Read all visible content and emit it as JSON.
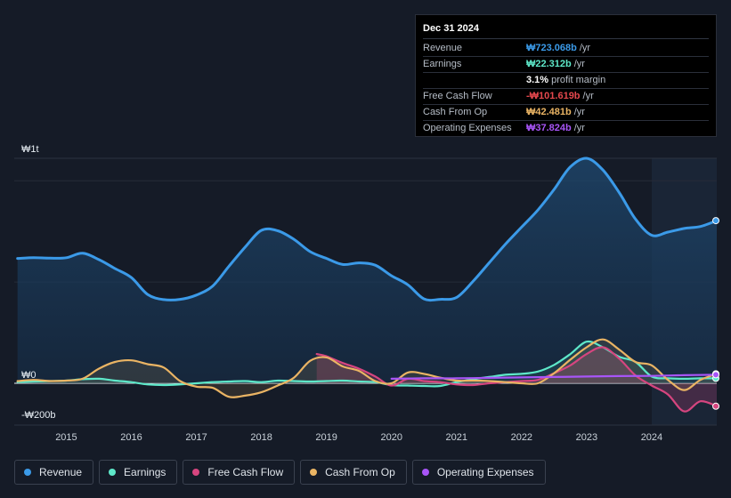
{
  "tooltip": {
    "date": "Dec 31 2024",
    "rows": [
      {
        "label": "Revenue",
        "value": "₩723.068b",
        "unit": "/yr",
        "color": "#3b9ae8"
      },
      {
        "label": "Earnings",
        "value": "₩22.312b",
        "unit": "/yr",
        "color": "#5ee8c9"
      },
      {
        "label": "",
        "value": "3.1%",
        "unit": "profit margin",
        "color": "#ffffff"
      },
      {
        "label": "Free Cash Flow",
        "value": "-₩101.619b",
        "unit": "/yr",
        "color": "#e5484d"
      },
      {
        "label": "Cash From Op",
        "value": "₩42.481b",
        "unit": "/yr",
        "color": "#eab464"
      },
      {
        "label": "Operating Expenses",
        "value": "₩37.824b",
        "unit": "/yr",
        "color": "#a855f7"
      }
    ]
  },
  "legend": [
    {
      "label": "Revenue",
      "color": "#3b9ae8"
    },
    {
      "label": "Earnings",
      "color": "#5ee8c9"
    },
    {
      "label": "Free Cash Flow",
      "color": "#d6457f"
    },
    {
      "label": "Cash From Op",
      "color": "#eab464"
    },
    {
      "label": "Operating Expenses",
      "color": "#a855f7"
    }
  ],
  "chart_data": {
    "type": "line",
    "title": "",
    "y_top_label": "₩1t",
    "y_zero_label": "₩0",
    "y_bottom_label": "-₩200b",
    "ylim": [
      -200,
      1000
    ],
    "xlim": [
      2014.2,
      2025.0
    ],
    "forecast_start": 2024.0,
    "x_ticks": [
      2015,
      2016,
      2017,
      2018,
      2019,
      2020,
      2021,
      2022,
      2023,
      2024
    ],
    "x_tick_labels": [
      "2015",
      "2016",
      "2017",
      "2018",
      "2019",
      "2020",
      "2021",
      "2022",
      "2023",
      "2024"
    ],
    "series": [
      {
        "name": "Revenue",
        "color": "#3b9ae8",
        "x": [
          2014.25,
          2014.5,
          2014.75,
          2015.0,
          2015.25,
          2015.5,
          2015.75,
          2016.0,
          2016.25,
          2016.5,
          2016.75,
          2017.0,
          2017.25,
          2017.5,
          2017.75,
          2018.0,
          2018.25,
          2018.5,
          2018.75,
          2019.0,
          2019.25,
          2019.5,
          2019.75,
          2020.0,
          2020.25,
          2020.5,
          2020.75,
          2021.0,
          2021.25,
          2021.5,
          2021.75,
          2022.0,
          2022.25,
          2022.5,
          2022.75,
          2023.0,
          2023.25,
          2023.5,
          2023.75,
          2024.0,
          2024.25,
          2024.5,
          2024.75,
          2025.0
        ],
        "values": [
          555,
          558,
          556,
          558,
          578,
          550,
          510,
          470,
          395,
          372,
          373,
          392,
          432,
          520,
          605,
          680,
          678,
          640,
          585,
          555,
          528,
          535,
          525,
          478,
          438,
          375,
          373,
          382,
          452,
          535,
          618,
          694,
          770,
          862,
          962,
          1000,
          948,
          848,
          730,
          658,
          672,
          688,
          697,
          723
        ]
      },
      {
        "name": "Earnings",
        "color": "#5ee8c9",
        "x": [
          2014.25,
          2014.5,
          2014.75,
          2015.0,
          2015.25,
          2015.5,
          2015.75,
          2016.0,
          2016.25,
          2016.5,
          2016.75,
          2017.0,
          2017.25,
          2017.5,
          2017.75,
          2018.0,
          2018.25,
          2018.5,
          2018.75,
          2019.0,
          2019.25,
          2019.5,
          2019.75,
          2020.0,
          2020.25,
          2020.5,
          2020.75,
          2021.0,
          2021.25,
          2021.5,
          2021.75,
          2022.0,
          2022.25,
          2022.5,
          2022.75,
          2023.0,
          2023.25,
          2023.5,
          2023.75,
          2024.0,
          2024.25,
          2024.5,
          2024.75,
          2025.0
        ],
        "values": [
          5,
          8,
          10,
          12,
          18,
          20,
          12,
          5,
          -5,
          -8,
          -5,
          0,
          5,
          8,
          10,
          5,
          12,
          10,
          8,
          10,
          12,
          8,
          5,
          -8,
          -10,
          -12,
          -12,
          5,
          18,
          28,
          38,
          42,
          52,
          82,
          130,
          185,
          160,
          118,
          95,
          30,
          22,
          20,
          22,
          22
        ]
      },
      {
        "name": "Free Cash Flow",
        "color": "#d6457f",
        "x": [
          2018.85,
          2019.0,
          2019.25,
          2019.5,
          2019.75,
          2020.0,
          2020.25,
          2020.5,
          2020.75,
          2021.0,
          2021.25,
          2021.5,
          2021.75,
          2022.0,
          2022.25,
          2022.5,
          2022.75,
          2023.0,
          2023.25,
          2023.5,
          2023.75,
          2024.0,
          2024.25,
          2024.5,
          2024.75,
          2025.0
        ],
        "values": [
          130,
          120,
          90,
          65,
          30,
          -10,
          20,
          10,
          5,
          -5,
          -8,
          0,
          5,
          10,
          15,
          45,
          80,
          130,
          160,
          110,
          35,
          -10,
          -50,
          -125,
          -80,
          -102
        ]
      },
      {
        "name": "Cash From Op",
        "color": "#eab464",
        "x": [
          2014.25,
          2014.5,
          2014.75,
          2015.0,
          2015.25,
          2015.5,
          2015.75,
          2016.0,
          2016.25,
          2016.5,
          2016.75,
          2017.0,
          2017.25,
          2017.5,
          2017.75,
          2018.0,
          2018.25,
          2018.5,
          2018.75,
          2019.0,
          2019.25,
          2019.5,
          2019.75,
          2020.0,
          2020.25,
          2020.5,
          2020.75,
          2021.0,
          2021.25,
          2021.5,
          2021.75,
          2022.0,
          2022.25,
          2022.5,
          2022.75,
          2023.0,
          2023.25,
          2023.5,
          2023.75,
          2024.0,
          2024.25,
          2024.5,
          2024.75,
          2025.0
        ],
        "values": [
          10,
          15,
          10,
          12,
          20,
          65,
          95,
          102,
          85,
          70,
          10,
          -15,
          -20,
          -60,
          -55,
          -40,
          -10,
          25,
          100,
          115,
          75,
          55,
          10,
          0,
          48,
          42,
          25,
          12,
          12,
          10,
          5,
          0,
          0,
          45,
          105,
          160,
          195,
          150,
          95,
          80,
          15,
          -30,
          15,
          42
        ]
      },
      {
        "name": "Operating Expenses",
        "color": "#a855f7",
        "x": [
          2020.0,
          2020.5,
          2021.0,
          2021.5,
          2022.0,
          2022.5,
          2023.0,
          2023.5,
          2024.0,
          2024.5,
          2025.0
        ],
        "values": [
          20,
          22,
          22,
          24,
          26,
          28,
          30,
          32,
          33,
          36,
          38
        ]
      }
    ]
  }
}
